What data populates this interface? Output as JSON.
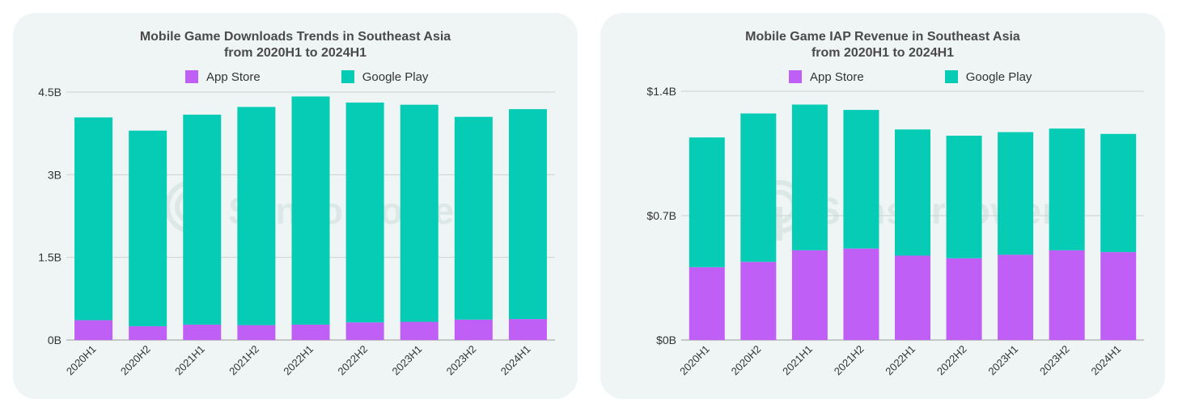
{
  "watermark": "SensorTower",
  "colors": {
    "app_store": "#bf5ff5",
    "google_play": "#06ccb6",
    "grid": "#c9d3d1",
    "axis": "#999999",
    "text": "#333333"
  },
  "chart_data": [
    {
      "type": "bar",
      "stacked": true,
      "title_lines": [
        "Mobile Game Downloads Trends in Southeast Asia",
        "from 2020H1 to 2024H1"
      ],
      "legend": [
        "App Store",
        "Google Play"
      ],
      "categories": [
        "2020H1",
        "2020H2",
        "2021H1",
        "2021H2",
        "2022H1",
        "2022H2",
        "2023H1",
        "2023H2",
        "2024H1"
      ],
      "series": [
        {
          "name": "App Store",
          "values": [
            0.36,
            0.25,
            0.28,
            0.27,
            0.28,
            0.32,
            0.33,
            0.37,
            0.38
          ]
        },
        {
          "name": "Google Play",
          "values": [
            3.68,
            3.55,
            3.81,
            3.96,
            4.14,
            3.99,
            3.94,
            3.68,
            3.81
          ]
        }
      ],
      "ylim": [
        0,
        4.5
      ],
      "y_ticks": [
        0,
        1.5,
        3,
        4.5
      ],
      "y_tick_labels": [
        "0B",
        "1.5B",
        "3B",
        "4.5B"
      ],
      "grid": true,
      "xlabel": "",
      "ylabel": ""
    },
    {
      "type": "bar",
      "stacked": true,
      "title_lines": [
        "Mobile Game IAP Revenue in Southeast Asia",
        "from 2020H1 to 2024H1"
      ],
      "legend": [
        "App Store",
        "Google Play"
      ],
      "categories": [
        "2020H1",
        "2020H2",
        "2021H1",
        "2021H2",
        "2022H1",
        "2022H2",
        "2023H1",
        "2023H2",
        "2024H1"
      ],
      "series": [
        {
          "name": "App Store",
          "values": [
            0.41,
            0.44,
            0.505,
            0.515,
            0.475,
            0.46,
            0.48,
            0.505,
            0.495
          ]
        },
        {
          "name": "Google Play",
          "values": [
            0.73,
            0.835,
            0.82,
            0.78,
            0.71,
            0.69,
            0.69,
            0.685,
            0.665
          ]
        }
      ],
      "ylim": [
        0,
        1.4
      ],
      "y_ticks": [
        0,
        0.7,
        1.4
      ],
      "y_tick_labels": [
        "$0B",
        "$0.7B",
        "$1.4B"
      ],
      "grid": true,
      "xlabel": "",
      "ylabel": ""
    }
  ]
}
